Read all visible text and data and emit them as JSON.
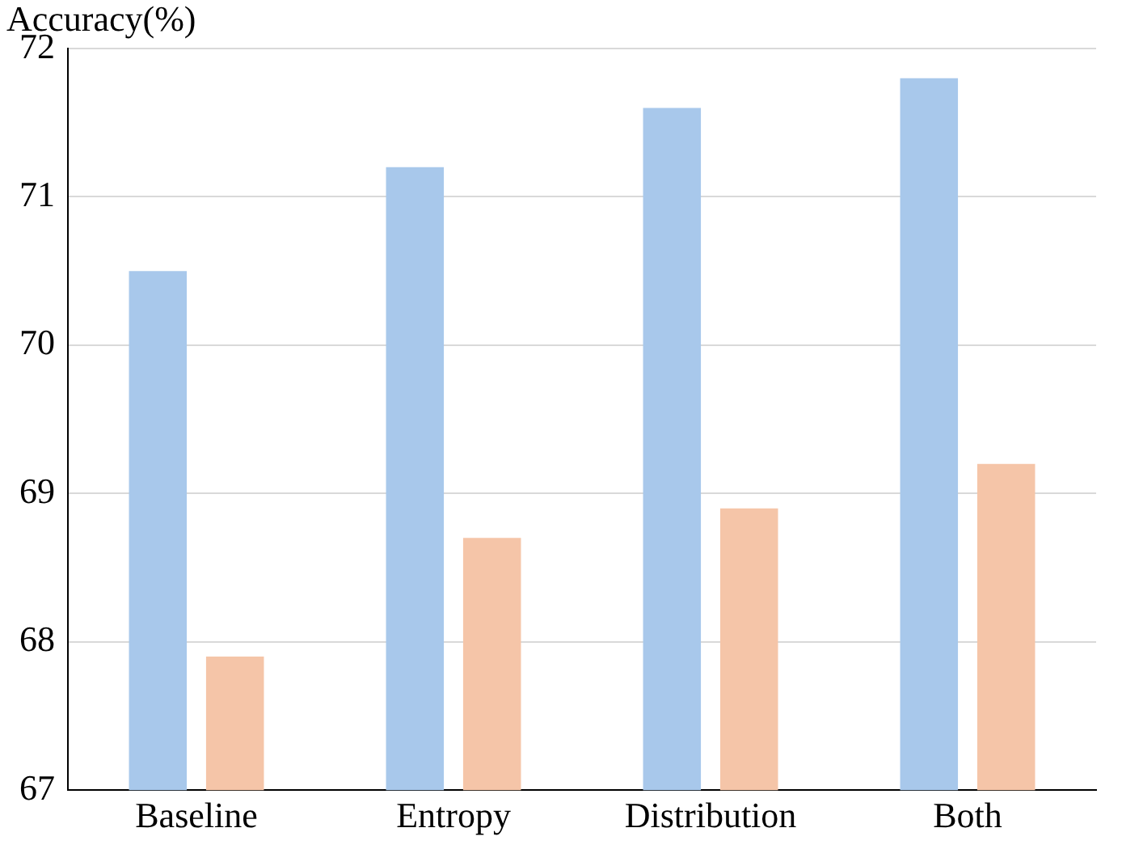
{
  "chart_data": {
    "type": "bar",
    "ylabel": "Accuracy(%)",
    "categories": [
      "Baseline",
      "Entropy",
      "Distribution",
      "Both"
    ],
    "series": [
      {
        "color": "#a8c8eb",
        "values": [
          70.5,
          71.2,
          71.6,
          71.8
        ]
      },
      {
        "color": "#f5c5a8",
        "values": [
          67.9,
          68.7,
          68.9,
          69.2
        ]
      }
    ],
    "ylim": [
      67,
      72
    ],
    "yticks": [
      67,
      68,
      69,
      70,
      71,
      72
    ],
    "grid": "y",
    "legend": false
  }
}
